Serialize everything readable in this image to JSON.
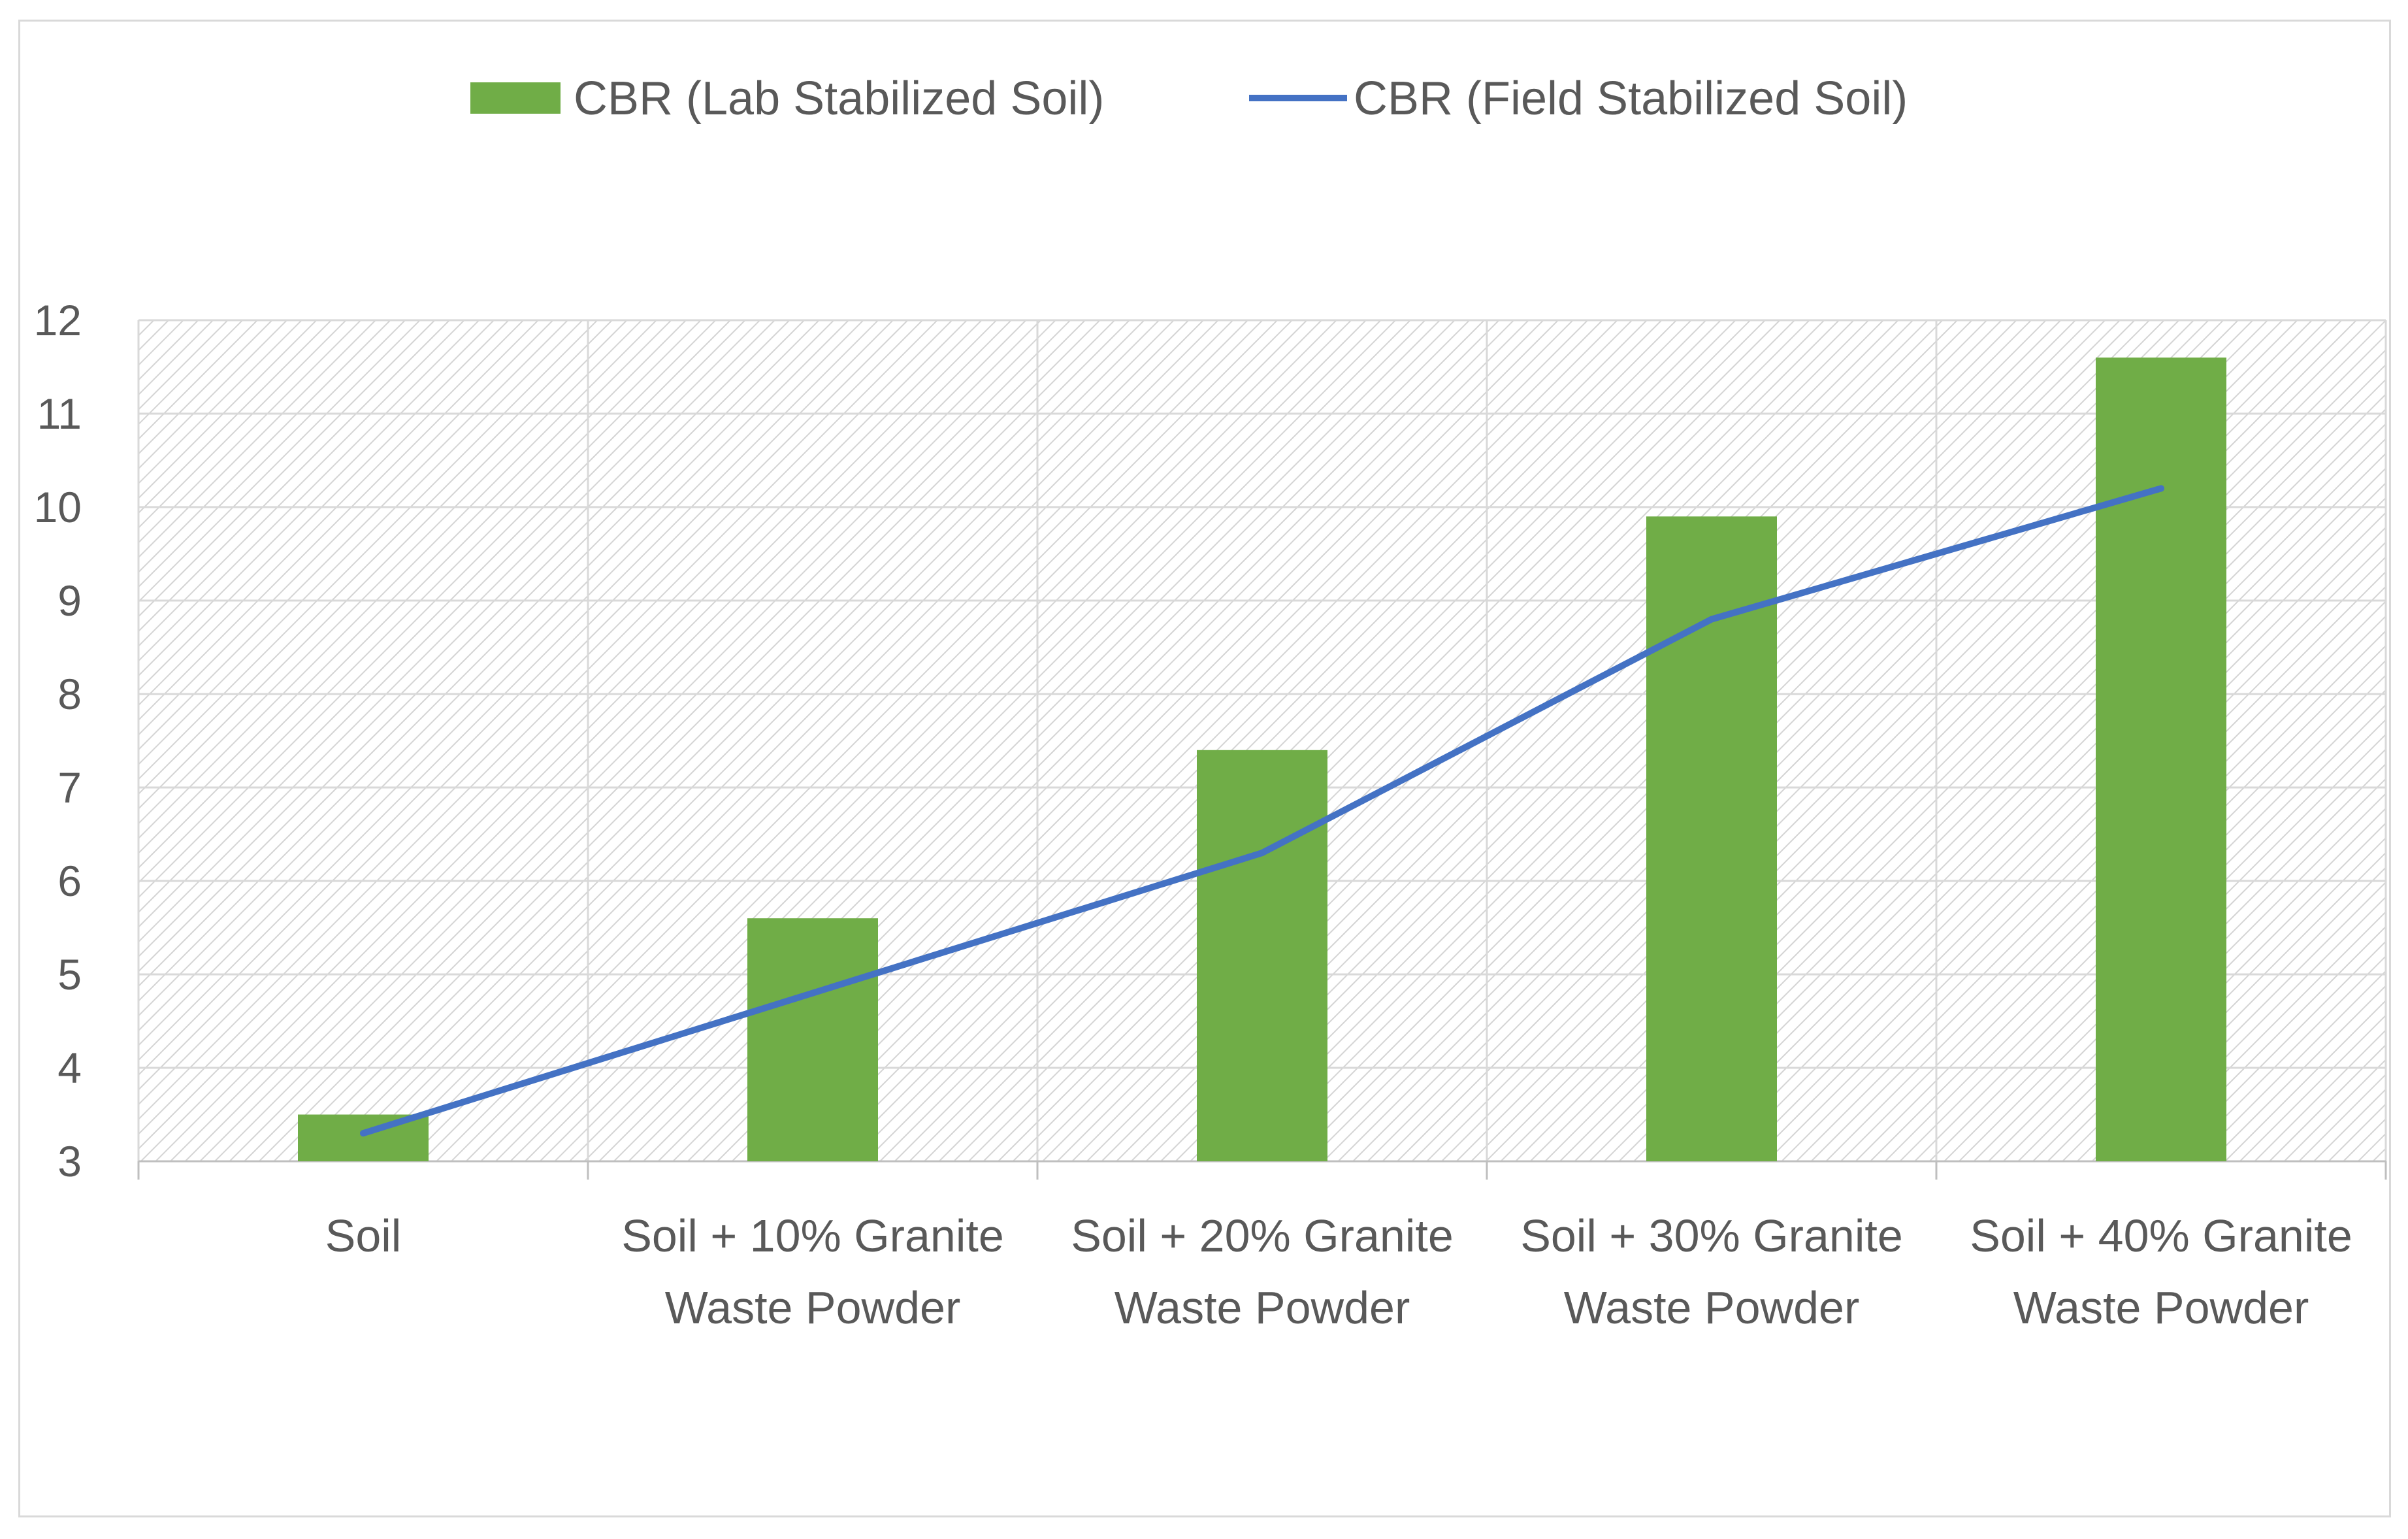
{
  "chart_data": {
    "type": "bar",
    "title": "",
    "xlabel": "",
    "ylabel": "",
    "categories": [
      [
        "Soil"
      ],
      [
        "Soil + 10% Granite",
        "Waste Powder"
      ],
      [
        "Soil + 20% Granite",
        "Waste Powder"
      ],
      [
        "Soil + 30% Granite",
        "Waste Powder"
      ],
      [
        "Soil + 40% Granite",
        "Waste Powder"
      ]
    ],
    "series": [
      {
        "name": "CBR (Lab Stabilized Soil)",
        "type": "bar",
        "color": "#70ad47",
        "values": [
          3.5,
          5.6,
          7.4,
          9.9,
          11.6
        ]
      },
      {
        "name": "CBR (Field Stabilized Soil)",
        "type": "line",
        "color": "#4472c4",
        "values": [
          3.3,
          4.8,
          6.3,
          8.8,
          10.2
        ]
      }
    ],
    "ylim": [
      3,
      12
    ],
    "yticks": [
      3,
      4,
      5,
      6,
      7,
      8,
      9,
      10,
      11,
      12
    ],
    "grid": true,
    "legend_position": "top"
  }
}
